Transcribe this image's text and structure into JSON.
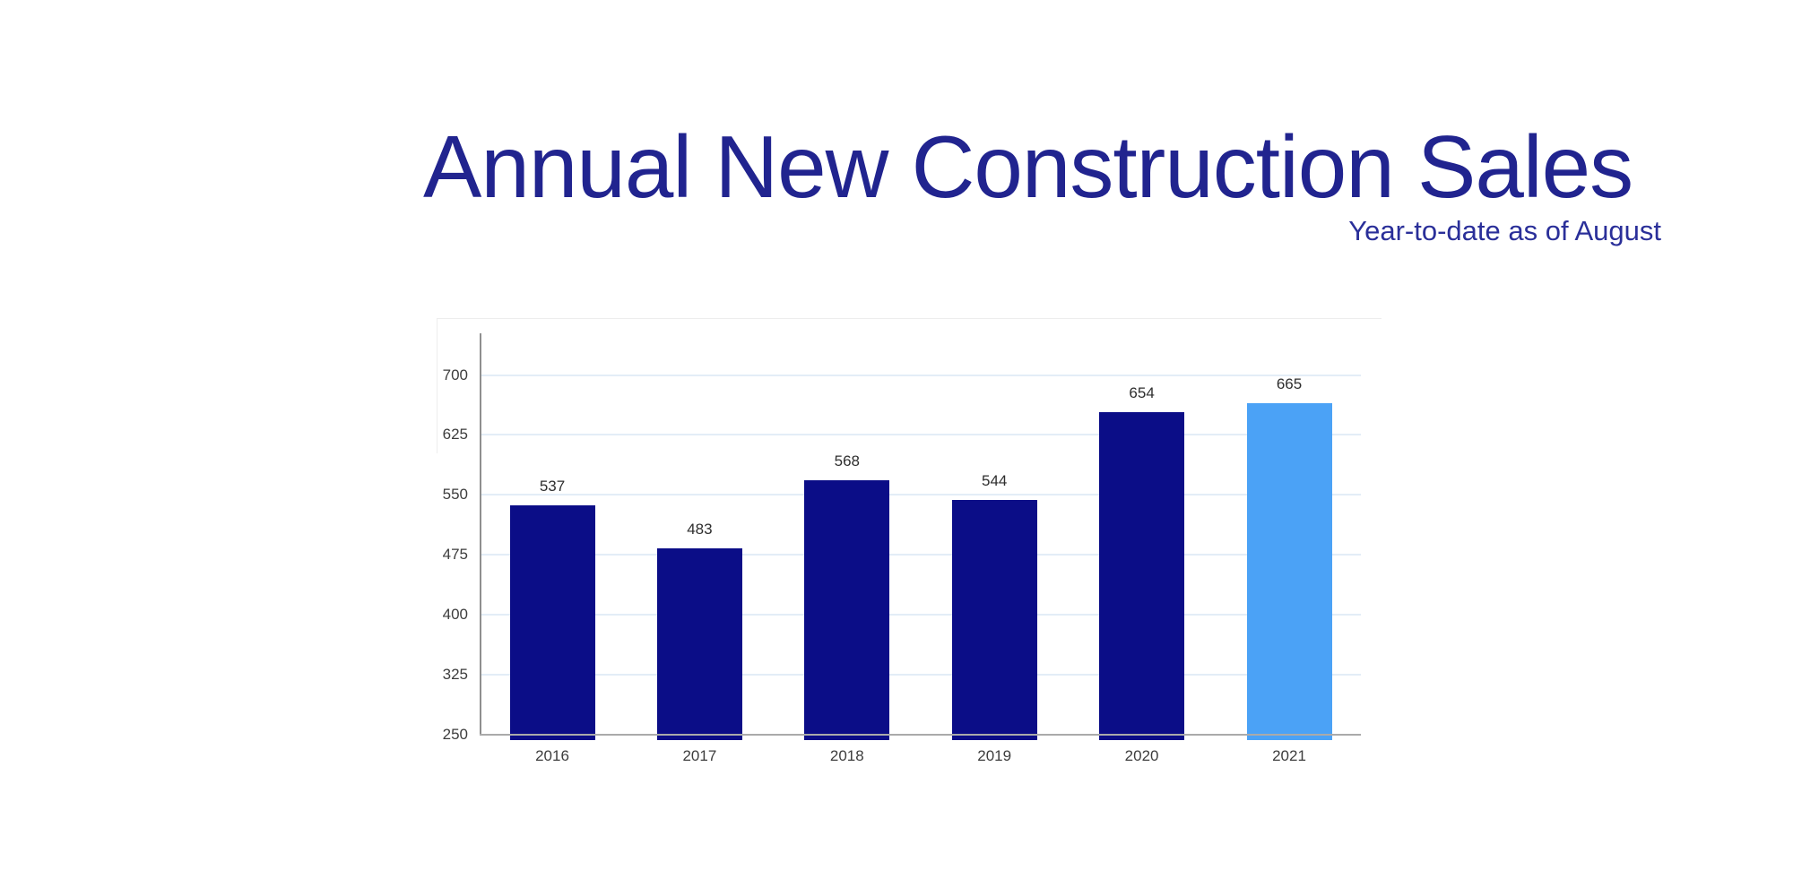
{
  "chart_data": {
    "type": "bar",
    "title": "Annual New Construction Sales",
    "subtitle": "Year-to-date as of August",
    "categories": [
      "2016",
      "2017",
      "2018",
      "2019",
      "2020",
      "2021"
    ],
    "values": [
      537,
      483,
      568,
      544,
      654,
      665
    ],
    "value_labels": [
      "537",
      "483",
      "568",
      "544",
      "654",
      "665"
    ],
    "yticks": [
      250,
      325,
      400,
      475,
      550,
      625,
      700
    ],
    "ytick_labels": [
      "250",
      "325",
      "400",
      "475",
      "550",
      "625",
      "700"
    ],
    "ylim": [
      250,
      753
    ],
    "xlabel": "",
    "ylabel": "",
    "grid": "horizontal-on",
    "legend": "none",
    "highlight_index": 5,
    "colors": {
      "title": "#21248f",
      "subtitle": "#2a2f99",
      "bar_default": "#0b0d87",
      "bar_highlight": "#4ba2f6",
      "gridline": "#e3edf7",
      "y_axis_line": "#8f8f8f",
      "x_axis_line": "#aaaaaa",
      "tick_label": "#3d3d3d",
      "value_label": "#2e2e2e",
      "category_label": "#3d3d3d"
    }
  }
}
